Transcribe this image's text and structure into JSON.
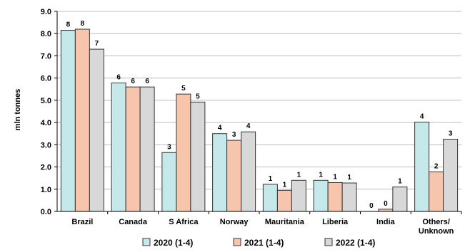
{
  "chart_data": {
    "type": "bar",
    "title": "",
    "xlabel": "",
    "ylabel": "mln tonnes",
    "ylim": [
      0,
      9
    ],
    "yticks": [
      "0.0",
      "1.0",
      "2.0",
      "3.0",
      "4.0",
      "5.0",
      "6.0",
      "7.0",
      "8.0",
      "9.0"
    ],
    "grid": true,
    "legend_position": "bottom",
    "categories": [
      "Brazil",
      "Canada",
      "S Africa",
      "Norway",
      "Mauritania",
      "Liberia",
      "India",
      "Others/\nUnknown"
    ],
    "series": [
      {
        "name": "2020 (1-4)",
        "color": "#c5e8ea",
        "values": [
          8.15,
          5.78,
          2.65,
          3.5,
          1.22,
          1.4,
          0.0,
          4.02
        ],
        "labels": [
          "8",
          "6",
          "3",
          "4",
          "1",
          "1",
          "0",
          "4"
        ]
      },
      {
        "name": "2021 (1-4)",
        "color": "#f6c5ac",
        "values": [
          8.2,
          5.6,
          5.28,
          3.2,
          0.95,
          1.3,
          0.1,
          1.78
        ],
        "labels": [
          "8",
          "6",
          "5",
          "3",
          "1",
          "1",
          "0",
          "2"
        ]
      },
      {
        "name": "2022 (1-4)",
        "color": "#d8d8d8",
        "values": [
          7.3,
          5.6,
          4.92,
          3.58,
          1.4,
          1.28,
          1.1,
          3.25
        ],
        "labels": [
          "7",
          "6",
          "5",
          "4",
          "1",
          "1",
          "1",
          "3"
        ]
      }
    ]
  }
}
